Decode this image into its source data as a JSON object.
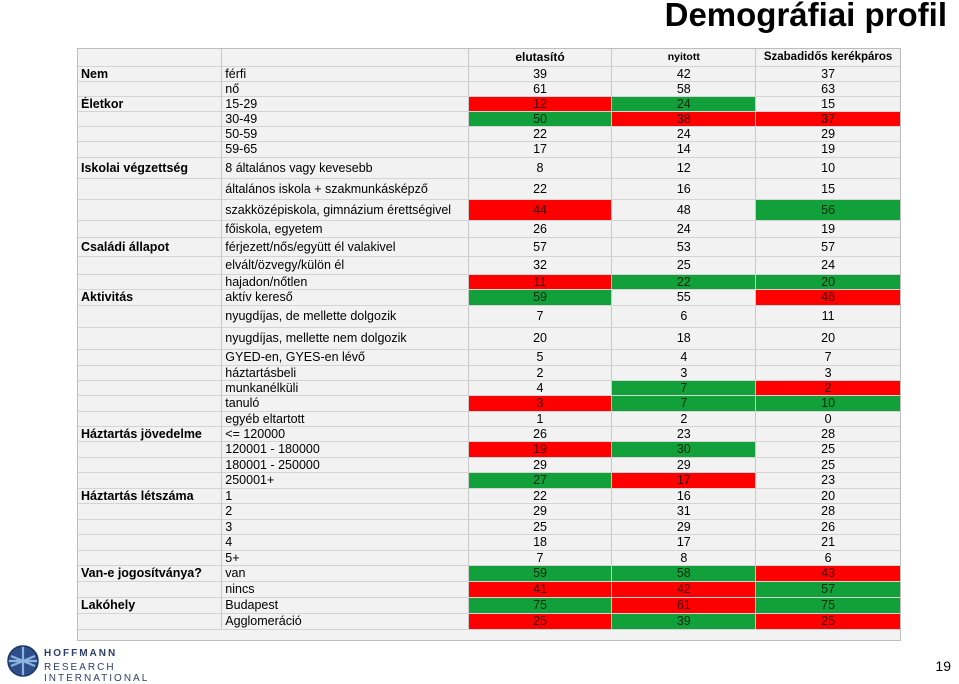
{
  "title": "Demográfiai profil",
  "page_number": "19",
  "logo": {
    "line1": "HOFFMANN",
    "line2": "RESEARCH INTERNATIONAL"
  },
  "colors": {
    "red": "#ff0000",
    "green": "#12a03a",
    "neutral": "#f2f2f2"
  },
  "columns": [
    "elutasító",
    "nyitott",
    "Szabadidős kerékpáros"
  ],
  "rows": [
    {
      "cat": "Nem",
      "sub": "férfi",
      "v": [
        "39",
        "42",
        "37"
      ],
      "c": [
        "n",
        "n",
        "n"
      ],
      "h": 15
    },
    {
      "cat": "",
      "sub": "nő",
      "v": [
        "61",
        "58",
        "63"
      ],
      "c": [
        "n",
        "n",
        "n"
      ],
      "h": 15
    },
    {
      "cat": "Életkor",
      "sub": "15-29",
      "v": [
        "12",
        "24",
        "15"
      ],
      "c": [
        "r",
        "g",
        "n"
      ],
      "h": 15
    },
    {
      "cat": "",
      "sub": "30-49",
      "v": [
        "50",
        "38",
        "37"
      ],
      "c": [
        "g",
        "r",
        "r"
      ],
      "h": 15
    },
    {
      "cat": "",
      "sub": "50-59",
      "v": [
        "22",
        "24",
        "29"
      ],
      "c": [
        "n",
        "n",
        "n"
      ],
      "h": 15
    },
    {
      "cat": "",
      "sub": "59-65",
      "v": [
        "17",
        "14",
        "19"
      ],
      "c": [
        "n",
        "n",
        "n"
      ],
      "h": 16
    },
    {
      "cat": "Iskolai végzettség",
      "sub": "8 általános vagy kevesebb",
      "v": [
        "8",
        "12",
        "10"
      ],
      "c": [
        "n",
        "n",
        "n"
      ],
      "h": 21
    },
    {
      "cat": "",
      "sub": "általános iskola + szakmunkásképző",
      "v": [
        "22",
        "16",
        "15"
      ],
      "c": [
        "n",
        "n",
        "n"
      ],
      "h": 21
    },
    {
      "cat": "",
      "sub": "szakközépiskola, gimnázium érettségivel",
      "v": [
        "44",
        "48",
        "56"
      ],
      "c": [
        "r",
        "n",
        "g"
      ],
      "h": 21
    },
    {
      "cat": "",
      "sub": "főiskola, egyetem",
      "v": [
        "26",
        "24",
        "19"
      ],
      "c": [
        "n",
        "n",
        "n"
      ],
      "h": 17
    },
    {
      "cat": "Családi állapot",
      "sub": "férjezett/nős/együtt él valakivel",
      "v": [
        "57",
        "53",
        "57"
      ],
      "c": [
        "n",
        "n",
        "n"
      ],
      "h": 19
    },
    {
      "cat": "",
      "sub": "elvált/özvegy/külön él",
      "v": [
        "32",
        "25",
        "24"
      ],
      "c": [
        "n",
        "n",
        "n"
      ],
      "h": 18
    },
    {
      "cat": "",
      "sub": "hajadon/nőtlen",
      "v": [
        "11",
        "22",
        "20"
      ],
      "c": [
        "r",
        "g",
        "g"
      ],
      "h": 15
    },
    {
      "cat": "Aktivitás",
      "sub": "aktív kereső",
      "v": [
        "59",
        "55",
        "46"
      ],
      "c": [
        "g",
        "n",
        "r"
      ],
      "h": 16
    },
    {
      "cat": "",
      "sub": "nyugdíjas, de mellette dolgozik",
      "v": [
        "7",
        "6",
        "11"
      ],
      "c": [
        "n",
        "n",
        "n"
      ],
      "h": 22
    },
    {
      "cat": "",
      "sub": "nyugdíjas, mellette nem dolgozik",
      "v": [
        "20",
        "18",
        "20"
      ],
      "c": [
        "n",
        "n",
        "n"
      ],
      "h": 22
    },
    {
      "cat": "",
      "sub": "GYED-en, GYES-en lévő",
      "v": [
        "5",
        "4",
        "7"
      ],
      "c": [
        "n",
        "n",
        "n"
      ],
      "h": 16
    },
    {
      "cat": "",
      "sub": "háztartásbeli",
      "v": [
        "2",
        "3",
        "3"
      ],
      "c": [
        "n",
        "n",
        "n"
      ],
      "h": 15
    },
    {
      "cat": "",
      "sub": "munkanélküli",
      "v": [
        "4",
        "7",
        "2"
      ],
      "c": [
        "n",
        "g",
        "r"
      ],
      "h": 15
    },
    {
      "cat": "",
      "sub": "tanuló",
      "v": [
        "3",
        "7",
        "10"
      ],
      "c": [
        "r",
        "g",
        "g"
      ],
      "h": 16
    },
    {
      "cat": "",
      "sub": "egyéb eltartott",
      "v": [
        "1",
        "2",
        "0"
      ],
      "c": [
        "n",
        "n",
        "n"
      ],
      "h": 15
    },
    {
      "cat": "Háztartás jövedelme",
      "sub": "<= 120000",
      "v": [
        "26",
        "23",
        "28"
      ],
      "c": [
        "n",
        "n",
        "n"
      ],
      "h": 15
    },
    {
      "cat": "",
      "sub": "120001 - 180000",
      "v": [
        "19",
        "30",
        "25"
      ],
      "c": [
        "r",
        "g",
        "n"
      ],
      "h": 16
    },
    {
      "cat": "",
      "sub": "180001 - 250000",
      "v": [
        "29",
        "29",
        "25"
      ],
      "c": [
        "n",
        "n",
        "n"
      ],
      "h": 15
    },
    {
      "cat": "",
      "sub": "250001+",
      "v": [
        "27",
        "17",
        "23"
      ],
      "c": [
        "g",
        "r",
        "n"
      ],
      "h": 16
    },
    {
      "cat": "Háztartás létszáma",
      "sub": "1",
      "v": [
        "22",
        "16",
        "20"
      ],
      "c": [
        "n",
        "n",
        "n"
      ],
      "h": 15
    },
    {
      "cat": "",
      "sub": "2",
      "v": [
        "29",
        "31",
        "28"
      ],
      "c": [
        "n",
        "n",
        "n"
      ],
      "h": 16
    },
    {
      "cat": "",
      "sub": "3",
      "v": [
        "25",
        "29",
        "26"
      ],
      "c": [
        "n",
        "n",
        "n"
      ],
      "h": 15
    },
    {
      "cat": "",
      "sub": "4",
      "v": [
        "18",
        "17",
        "21"
      ],
      "c": [
        "n",
        "n",
        "n"
      ],
      "h": 16
    },
    {
      "cat": "",
      "sub": "5+",
      "v": [
        "7",
        "8",
        "6"
      ],
      "c": [
        "n",
        "n",
        "n"
      ],
      "h": 15
    },
    {
      "cat": "Van-e jogosítványa?",
      "sub": "van",
      "v": [
        "59",
        "58",
        "43"
      ],
      "c": [
        "g",
        "g",
        "r"
      ],
      "h": 16
    },
    {
      "cat": "",
      "sub": "nincs",
      "v": [
        "41",
        "42",
        "57"
      ],
      "c": [
        "r",
        "r",
        "g"
      ],
      "h": 16
    },
    {
      "cat": "Lakóhely",
      "sub": "Budapest",
      "v": [
        "75",
        "61",
        "75"
      ],
      "c": [
        "g",
        "r",
        "g"
      ],
      "h": 16
    },
    {
      "cat": "",
      "sub": "Agglomeráció",
      "v": [
        "25",
        "39",
        "25"
      ],
      "c": [
        "r",
        "g",
        "r"
      ],
      "h": 16
    }
  ]
}
